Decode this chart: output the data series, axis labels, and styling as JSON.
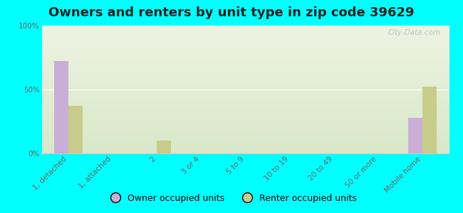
{
  "title": "Owners and renters by unit type in zip code 39629",
  "categories": [
    "1, detached",
    "1, attached",
    "2",
    "3 or 4",
    "5 to 9",
    "10 to 19",
    "20 to 49",
    "50 or more",
    "Mobile home"
  ],
  "owner_values": [
    72,
    0,
    0,
    0,
    0,
    0,
    0,
    0,
    28
  ],
  "renter_values": [
    37,
    0,
    10,
    0,
    0,
    0,
    0,
    0,
    52
  ],
  "owner_color": "#c9aed6",
  "renter_color": "#c8cc8a",
  "background_color": "#00ffff",
  "plot_bg_top": "#eef3e2",
  "plot_bg_bottom": "#d8e8c8",
  "ylim": [
    0,
    100
  ],
  "yticks": [
    0,
    50,
    100
  ],
  "ytick_labels": [
    "0%",
    "50%",
    "100%"
  ],
  "bar_width": 0.32,
  "title_fontsize": 13,
  "tick_fontsize": 7.5,
  "legend_fontsize": 9,
  "watermark": "City-Data.com"
}
